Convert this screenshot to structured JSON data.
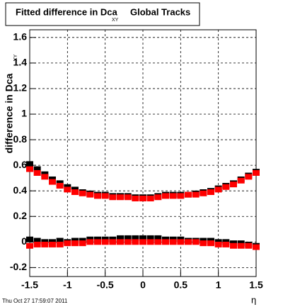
{
  "chart_data": {
    "type": "scatter",
    "title": "Fitted difference in Dca",
    "title_subscript": "XY",
    "title_suffix": "Global Tracks",
    "y_label": "difference in Dca",
    "y_label_subscript": "XY",
    "x_label": "η",
    "timestamp": "Thu Oct 27 17:59:07 2011",
    "x": [
      -1.5,
      -1.4,
      -1.3,
      -1.2,
      -1.1,
      -1.0,
      -0.9,
      -0.8,
      -0.7,
      -0.6,
      -0.5,
      -0.4,
      -0.3,
      -0.2,
      -0.1,
      0,
      0.1,
      0.2,
      0.3,
      0.4,
      0.5,
      0.6,
      0.7,
      0.8,
      0.9,
      1.0,
      1.1,
      1.2,
      1.3,
      1.4,
      1.5
    ],
    "series": [
      {
        "color": "#000000",
        "values": [
          0.61,
          0.57,
          0.53,
          0.49,
          0.46,
          0.43,
          0.41,
          0.39,
          0.38,
          0.37,
          0.37,
          0.36,
          0.36,
          0.36,
          0.35,
          0.35,
          0.35,
          0.36,
          0.37,
          0.37,
          0.37,
          0.37,
          0.38,
          0.39,
          0.4,
          0.42,
          0.44,
          0.46,
          0.49,
          0.52,
          0.55
        ]
      },
      {
        "color": "#ff0000",
        "values": [
          0.57,
          0.54,
          0.51,
          0.47,
          0.44,
          0.41,
          0.39,
          0.38,
          0.37,
          0.36,
          0.36,
          0.35,
          0.35,
          0.35,
          0.34,
          0.34,
          0.34,
          0.35,
          0.36,
          0.36,
          0.36,
          0.37,
          0.37,
          0.38,
          0.39,
          0.41,
          0.43,
          0.45,
          0.48,
          0.51,
          0.54
        ]
      },
      {
        "color": "#000000",
        "values": [
          0.02,
          0.01,
          0.0,
          0.0,
          0.01,
          0.0,
          0.01,
          0.01,
          0.02,
          0.02,
          0.02,
          0.02,
          0.03,
          0.03,
          0.03,
          0.03,
          0.03,
          0.03,
          0.02,
          0.02,
          0.02,
          0.01,
          0.01,
          0.01,
          0.01,
          0.0,
          0.0,
          -0.01,
          -0.01,
          -0.02,
          -0.03
        ]
      },
      {
        "color": "#ff0000",
        "values": [
          -0.03,
          -0.02,
          -0.02,
          -0.02,
          -0.02,
          -0.01,
          -0.01,
          -0.01,
          0,
          0,
          0,
          0,
          0,
          0,
          0,
          0,
          0,
          0,
          0,
          0,
          0,
          0,
          0,
          -0.01,
          -0.01,
          -0.02,
          -0.02,
          -0.03,
          -0.03,
          -0.03,
          -0.04
        ]
      }
    ],
    "xlim": [
      -1.5,
      1.5
    ],
    "ylim": [
      -0.27,
      1.66
    ],
    "xticks": [
      -1.5,
      -1,
      -0.5,
      0,
      0.5,
      1,
      1.5
    ],
    "yticks": [
      -0.2,
      0,
      0.2,
      0.4,
      0.6,
      0.8,
      1,
      1.2,
      1.4,
      1.6
    ],
    "grid": true
  }
}
